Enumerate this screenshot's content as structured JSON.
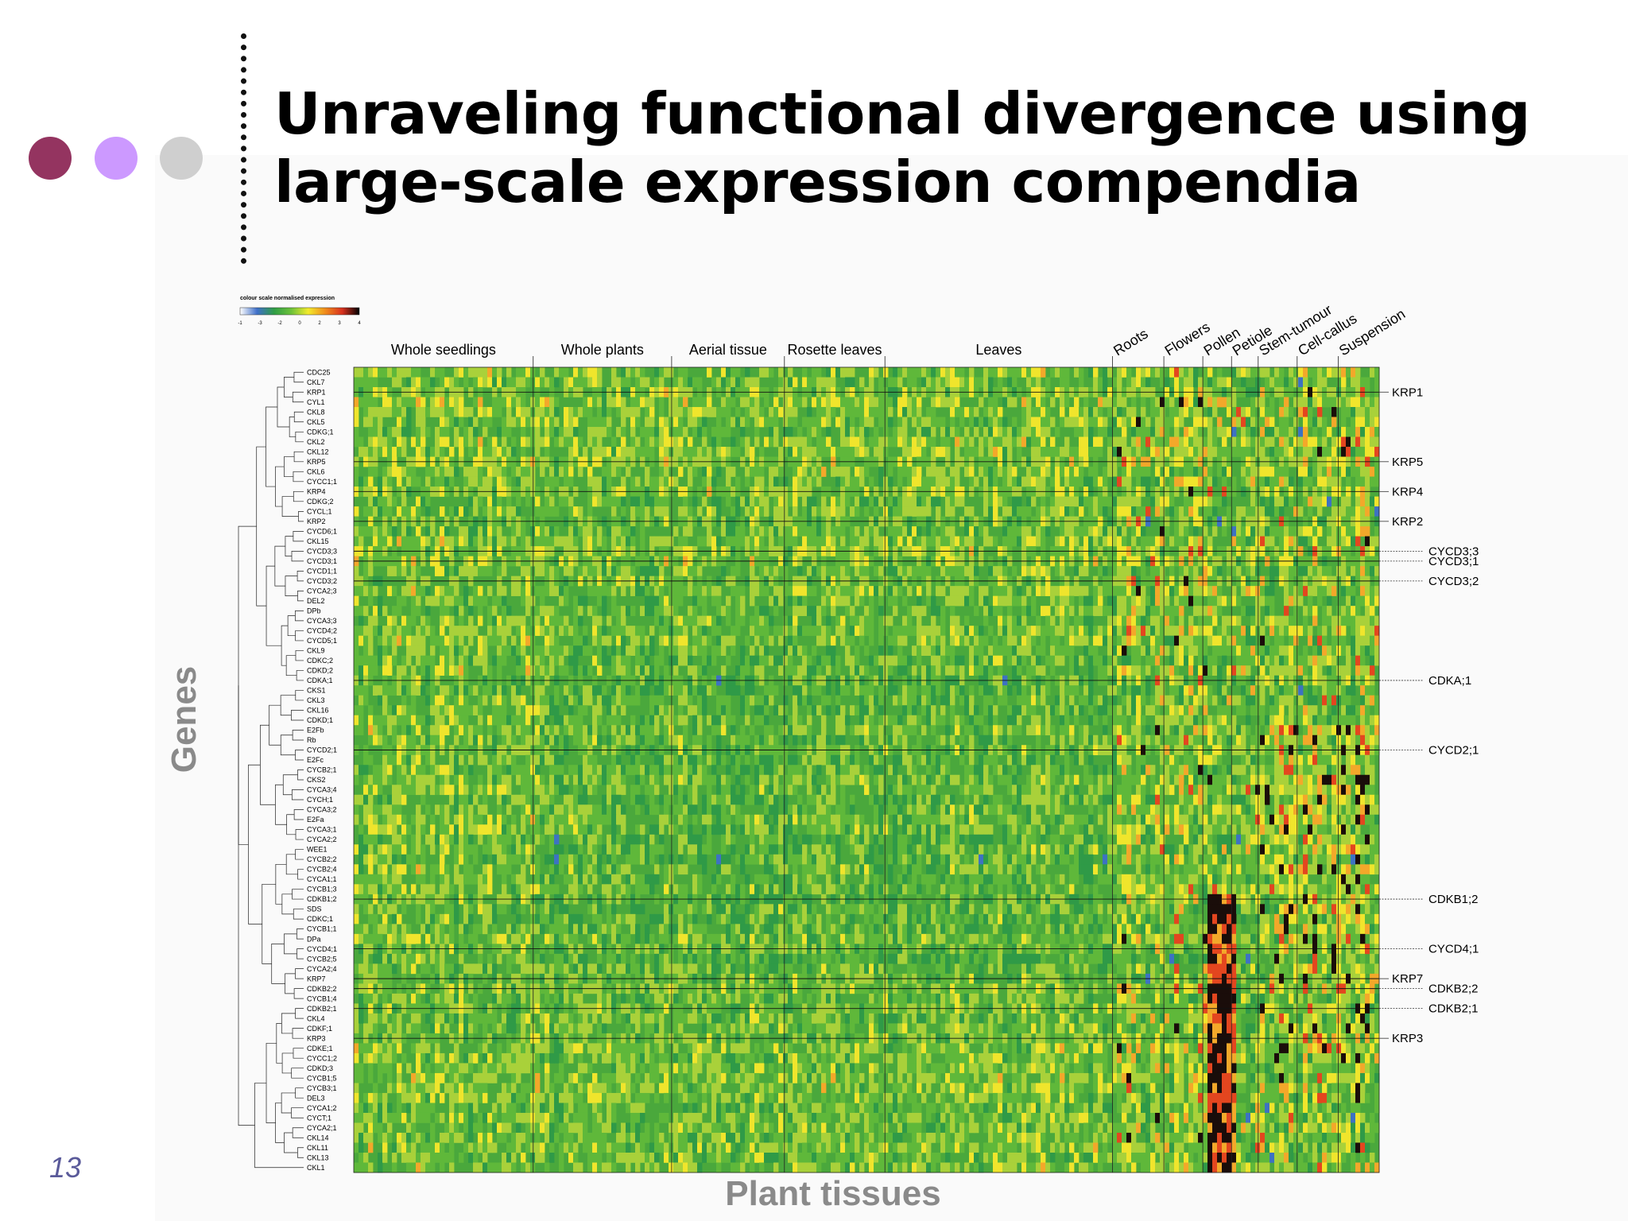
{
  "slide": {
    "title_line1": "Unraveling functional divergence using",
    "title_line2": "large-scale expression compendia",
    "slide_number": "13",
    "dots": [
      {
        "name": "dot-magenta",
        "color": "#943460"
      },
      {
        "name": "dot-lavender",
        "color": "#cc99ff"
      },
      {
        "name": "dot-grey",
        "color": "#cfcfcf"
      }
    ]
  },
  "chart_data": {
    "type": "heatmap",
    "xlabel": "Plant tissues",
    "ylabel": "Genes",
    "color_scale": {
      "title": "colour scale normalised expression",
      "ticks": [
        "-1",
        "-3",
        "-2",
        "0",
        "2",
        "3",
        "4"
      ],
      "colors": [
        "#ffffff",
        "#3f6fc9",
        "#2f9d45",
        "#6cc23a",
        "#f2ea2c",
        "#f08c1c",
        "#d8301e",
        "#000000"
      ]
    },
    "tissue_groups": [
      {
        "label": "Whole seedlings",
        "start": 0,
        "end": 0.175
      },
      {
        "label": "Whole plants",
        "start": 0.175,
        "end": 0.31
      },
      {
        "label": "Aerial tissue",
        "start": 0.31,
        "end": 0.42
      },
      {
        "label": "Rosette leaves",
        "start": 0.42,
        "end": 0.518
      },
      {
        "label": "Leaves",
        "start": 0.518,
        "end": 0.74
      },
      {
        "label": "Roots",
        "start": 0.74,
        "end": 0.79
      },
      {
        "label": "Flowers",
        "start": 0.79,
        "end": 0.828
      },
      {
        "label": "Pollen",
        "start": 0.828,
        "end": 0.856
      },
      {
        "label": "Petiole",
        "start": 0.856,
        "end": 0.882
      },
      {
        "label": "Stem-tumour",
        "start": 0.882,
        "end": 0.92
      },
      {
        "label": "Cell-callus",
        "start": 0.92,
        "end": 0.96
      },
      {
        "label": "Suspension",
        "start": 0.96,
        "end": 1.0
      }
    ],
    "genes": [
      "CDC25",
      "CKL7",
      "KRP1",
      "CYL1",
      "CKL8",
      "CKL5",
      "CDKG;1",
      "CKL2",
      "CKL12",
      "KRP5",
      "CKL6",
      "CYCC1;1",
      "KRP4",
      "CDKG;2",
      "CYCL;1",
      "KRP2",
      "CYCD6;1",
      "CKL15",
      "CYCD3;3",
      "CYCD3;1",
      "CYCD1;1",
      "CYCD3;2",
      "CYCA2;3",
      "DEL2",
      "DPb",
      "CYCA3;3",
      "CYCD4;2",
      "CYCD5;1",
      "CKL9",
      "CDKC;2",
      "CDKD;2",
      "CDKA;1",
      "CKS1",
      "CKL3",
      "CKL16",
      "CDKD;1",
      "E2Fb",
      "Rb",
      "CYCD2;1",
      "E2Fc",
      "CYCB2;1",
      "CKS2",
      "CYCA3;4",
      "CYCH;1",
      "CYCA3;2",
      "E2Fa",
      "CYCA3;1",
      "CYCA2;2",
      "WEE1",
      "CYCB2;2",
      "CYCB2;4",
      "CYCA1;1",
      "CYCB1;3",
      "CDKB1;2",
      "SDS",
      "CDKC;1",
      "CYCB1;1",
      "DPa",
      "CYCD4;1",
      "CYCB2;5",
      "CYCA2;4",
      "KRP7",
      "CDKB2;2",
      "CYCB1;4",
      "CDKB2;1",
      "CKL4",
      "CDKF;1",
      "KRP3",
      "CDKE;1",
      "CYCC1;2",
      "CDKD;3",
      "CYCB1;5",
      "CYCB3;1",
      "DEL3",
      "CYCA1;2",
      "CYCT;1",
      "CYCA2;1",
      "CKL14",
      "CKL11",
      "CKL13",
      "CKL1"
    ],
    "right_labels_near": [
      "KRP1",
      "KRP5",
      "KRP4",
      "KRP2",
      "KRP7",
      "KRP3"
    ],
    "right_labels_far": [
      "CYCD3;3",
      "CYCD3;1",
      "CYCD3;2",
      "CDKA;1",
      "CYCD2;1",
      "CDKB1;2",
      "CYCD4;1",
      "CDKB2;2",
      "CDKB2;1"
    ]
  }
}
